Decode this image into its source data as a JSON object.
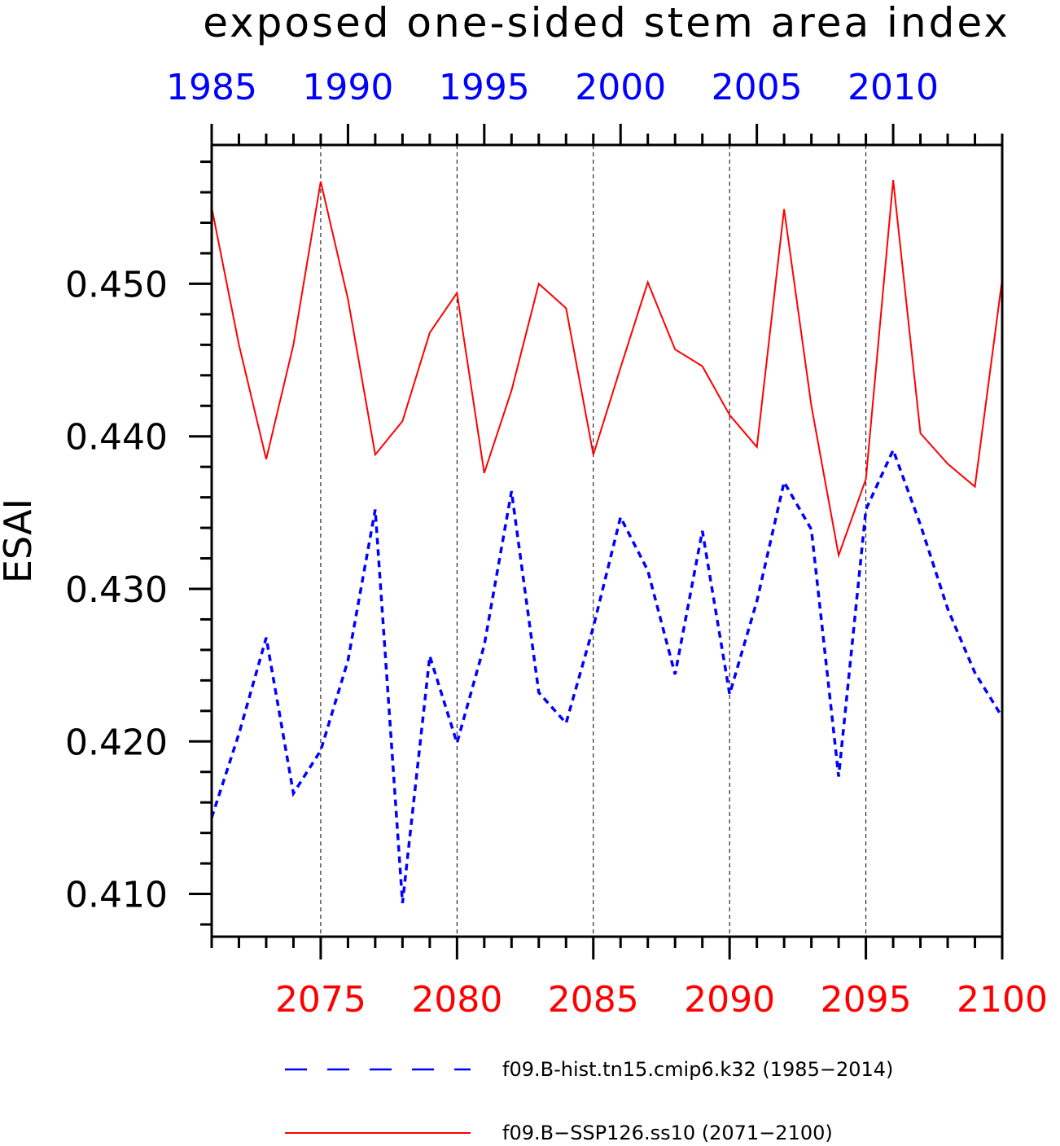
{
  "chart_data": {
    "type": "line",
    "title": "exposed one-sided stem area index",
    "ylabel": "ESAI",
    "xlabel": "",
    "ylim": [
      0.4072,
      0.4591
    ],
    "grid": "vertical dashed lines at bottom-axis major ticks",
    "legend_position": "bottom",
    "x_bottom": {
      "range": [
        2071,
        2100
      ],
      "ticks": [
        2075,
        2080,
        2085,
        2090,
        2095,
        2100
      ],
      "color": "#ff0000"
    },
    "x_top": {
      "range": [
        1985,
        2014
      ],
      "ticks": [
        1985,
        1990,
        1995,
        2000,
        2005,
        2010
      ],
      "color": "#0000ff"
    },
    "y_ticks": [
      0.41,
      0.42,
      0.43,
      0.44,
      0.45
    ],
    "series": [
      {
        "name": "f09.B-hist.tn15.cmip6.k32 (1985−2014)",
        "axis": "top",
        "color": "#0000ff",
        "style": "dashed",
        "x": [
          1985,
          1986,
          1987,
          1988,
          1989,
          1990,
          1991,
          1992,
          1993,
          1994,
          1995,
          1996,
          1997,
          1998,
          1999,
          2000,
          2001,
          2002,
          2003,
          2004,
          2005,
          2006,
          2007,
          2008,
          2009,
          2010,
          2011,
          2012,
          2013,
          2014
        ],
        "values": [
          0.415,
          0.4205,
          0.4268,
          0.4166,
          0.4194,
          0.4253,
          0.4352,
          0.4094,
          0.4256,
          0.4199,
          0.4263,
          0.4364,
          0.4232,
          0.4212,
          0.4275,
          0.4347,
          0.4312,
          0.4244,
          0.4338,
          0.4231,
          0.4292,
          0.437,
          0.4339,
          0.4177,
          0.4352,
          0.4391,
          0.4342,
          0.4287,
          0.4245,
          0.4216
        ]
      },
      {
        "name": "f09.B−SSP126.ss10 (2071−2100)",
        "axis": "bottom",
        "color": "#ff0000",
        "style": "solid",
        "x": [
          2071,
          2072,
          2073,
          2074,
          2075,
          2076,
          2077,
          2078,
          2079,
          2080,
          2081,
          2082,
          2083,
          2084,
          2085,
          2086,
          2087,
          2088,
          2089,
          2090,
          2091,
          2092,
          2093,
          2094,
          2095,
          2096,
          2097,
          2098,
          2099,
          2100
        ],
        "values": [
          0.455,
          0.446,
          0.4385,
          0.446,
          0.4567,
          0.449,
          0.4388,
          0.441,
          0.4468,
          0.4494,
          0.4376,
          0.443,
          0.45,
          0.4484,
          0.4388,
          0.4445,
          0.4501,
          0.4457,
          0.4446,
          0.4414,
          0.4393,
          0.4549,
          0.442,
          0.4322,
          0.4372,
          0.4568,
          0.4402,
          0.4382,
          0.4367,
          0.4503
        ]
      }
    ]
  }
}
